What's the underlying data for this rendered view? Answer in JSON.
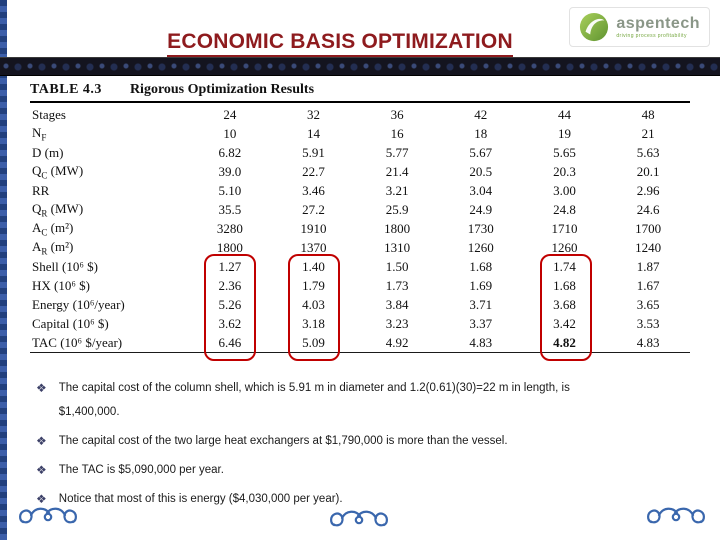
{
  "slide": {
    "title": "ECONOMIC BASIS OPTIMIZATION"
  },
  "logo": {
    "brand": "aspentech",
    "tagline": "driving process profitability"
  },
  "table": {
    "tag": "TABLE 4.3",
    "caption": "Rigorous Optimization Results",
    "highlight_color": "#c00000",
    "rows": [
      {
        "label_main": "Stages",
        "label_sub": "",
        "label_rest": "",
        "values": [
          "24",
          "32",
          "36",
          "42",
          "44",
          "48"
        ]
      },
      {
        "label_main": "N",
        "label_sub": "F",
        "label_rest": "",
        "values": [
          "10",
          "14",
          "16",
          "18",
          "19",
          "21"
        ]
      },
      {
        "label_main": "D",
        "label_sub": "",
        "label_rest": " (m)",
        "values": [
          "6.82",
          "5.91",
          "5.77",
          "5.67",
          "5.65",
          "5.63"
        ]
      },
      {
        "label_main": "Q",
        "label_sub": "C",
        "label_rest": " (MW)",
        "values": [
          "39.0",
          "22.7",
          "21.4",
          "20.5",
          "20.3",
          "20.1"
        ]
      },
      {
        "label_main": "RR",
        "label_sub": "",
        "label_rest": "",
        "values": [
          "5.10",
          "3.46",
          "3.21",
          "3.04",
          "3.00",
          "2.96"
        ]
      },
      {
        "label_main": "Q",
        "label_sub": "R",
        "label_rest": " (MW)",
        "values": [
          "35.5",
          "27.2",
          "25.9",
          "24.9",
          "24.8",
          "24.6"
        ]
      },
      {
        "label_main": "A",
        "label_sub": "C",
        "label_rest": " (m²)",
        "values": [
          "3280",
          "1910",
          "1800",
          "1730",
          "1710",
          "1700"
        ]
      },
      {
        "label_main": "A",
        "label_sub": "R",
        "label_rest": " (m²)",
        "values": [
          "1800",
          "1370",
          "1310",
          "1260",
          "1260",
          "1240"
        ]
      },
      {
        "label_main": "Shell",
        "label_sub": "",
        "label_rest": " (10⁶ $)",
        "values": [
          "1.27",
          "1.40",
          "1.50",
          "1.68",
          "1.74",
          "1.87"
        ]
      },
      {
        "label_main": "HX",
        "label_sub": "",
        "label_rest": " (10⁶ $)",
        "values": [
          "2.36",
          "1.79",
          "1.73",
          "1.69",
          "1.68",
          "1.67"
        ]
      },
      {
        "label_main": "Energy",
        "label_sub": "",
        "label_rest": " (10⁶/year)",
        "values": [
          "5.26",
          "4.03",
          "3.84",
          "3.71",
          "3.68",
          "3.65"
        ]
      },
      {
        "label_main": "Capital",
        "label_sub": "",
        "label_rest": " (10⁶ $)",
        "values": [
          "3.62",
          "3.18",
          "3.23",
          "3.37",
          "3.42",
          "3.53"
        ]
      },
      {
        "label_main": "TAC",
        "label_sub": "",
        "label_rest": " (10⁶ $/year)",
        "values": [
          "6.46",
          "5.09",
          "4.92",
          "4.83",
          "4.82",
          "4.83"
        ]
      }
    ],
    "bold_cell": {
      "row": 12,
      "col": 4
    }
  },
  "bullet_glyph": "❖",
  "bullets": [
    {
      "lines": [
        "The capital cost of the column shell, which is 5.91 m in diameter and 1.2(0.61)(30)=22 m in length, is",
        "$1,400,000."
      ]
    },
    {
      "lines": [
        "The capital cost of the two large heat exchangers at $1,790,000 is more than the vessel."
      ]
    },
    {
      "lines": [
        "The TAC is $5,090,000 per year."
      ]
    },
    {
      "lines": [
        "Notice that most of this is energy ($4,030,000 per year)."
      ]
    }
  ]
}
